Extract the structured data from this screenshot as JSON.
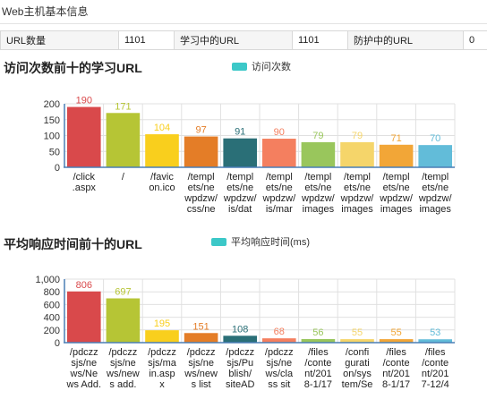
{
  "panel": {
    "title": "Web主机基本信息"
  },
  "stats": [
    {
      "label": "URL数量",
      "value": "1101"
    },
    {
      "label": "学习中的URL",
      "value": "1101"
    },
    {
      "label": "防护中的URL",
      "value": "0"
    }
  ],
  "chart_data": [
    {
      "type": "bar",
      "title": "访问次数前十的学习URL",
      "legend": "访问次数",
      "legend_color": "#3cc8c8",
      "ylim": [
        0,
        200
      ],
      "yticks": [
        "0",
        "50",
        "100",
        "150",
        "200"
      ],
      "categories": [
        [
          "/click",
          ".aspx"
        ],
        [
          "/"
        ],
        [
          "/favic",
          "on.ico"
        ],
        [
          "/templ",
          "ets/ne",
          "wpdzw/",
          "css/ne"
        ],
        [
          "/templ",
          "ets/ne",
          "wpdzw/",
          "is/dat"
        ],
        [
          "/templ",
          "ets/ne",
          "wpdzw/",
          "is/mar"
        ],
        [
          "/templ",
          "ets/ne",
          "wpdzw/",
          "images"
        ],
        [
          "/templ",
          "ets/ne",
          "wpdzw/",
          "images"
        ],
        [
          "/templ",
          "ets/ne",
          "wpdzw/",
          "images"
        ],
        [
          "/templ",
          "ets/ne",
          "wpdzw/",
          "images"
        ]
      ],
      "values": [
        190,
        171,
        104,
        97,
        91,
        90,
        79,
        79,
        71,
        70
      ],
      "value_labels": [
        "190",
        "171",
        "104",
        "97",
        "91",
        "90",
        "79",
        "79",
        "71",
        "70"
      ],
      "colors": [
        "#d9494b",
        "#b6c535",
        "#f9cf1d",
        "#e47d27",
        "#2a6f77",
        "#f47f5f",
        "#99c65c",
        "#f5d56a",
        "#f2a637",
        "#62bcd9"
      ]
    },
    {
      "type": "bar",
      "title": "平均响应时间前十的URL",
      "legend": "平均响应时间(ms)",
      "legend_color": "#3cc8c8",
      "ylim": [
        0,
        1000
      ],
      "yticks": [
        "0",
        "200",
        "400",
        "600",
        "800",
        "1,000"
      ],
      "categories": [
        [
          "/pdczz",
          "sjs/ne",
          "ws/Nе",
          "ws Add."
        ],
        [
          "/pdczz",
          "sjs/ne",
          "ws/new",
          "s add."
        ],
        [
          "/pdczz",
          "sjs/ma",
          "in.asp",
          "x"
        ],
        [
          "/pdczz",
          "sjs/ne",
          "ws/new",
          "s list"
        ],
        [
          "/pdczz",
          "sjs/Pu",
          "blish/",
          "siteAD"
        ],
        [
          "/pdczz",
          "sjs/ne",
          "ws/cla",
          "ss sit"
        ],
        [
          "/files",
          "/conte",
          "nt/201",
          "8-1/17"
        ],
        [
          "/confi",
          "gurati",
          "on/sys",
          "tem/Se"
        ],
        [
          "/files",
          "/conte",
          "nt/201",
          "8-1/17"
        ],
        [
          "/files",
          "/conte",
          "nt/201",
          "7-12/4"
        ]
      ],
      "values": [
        806,
        697,
        195,
        151,
        108,
        68,
        56,
        55,
        55,
        53
      ],
      "value_labels": [
        "806",
        "697",
        "195",
        "151",
        "108",
        "68",
        "56",
        "55",
        "55",
        "53"
      ],
      "colors": [
        "#d9494b",
        "#b6c535",
        "#f9cf1d",
        "#e47d27",
        "#2a6f77",
        "#f47f5f",
        "#99c65c",
        "#f5d56a",
        "#f2a637",
        "#62bcd9"
      ]
    }
  ]
}
